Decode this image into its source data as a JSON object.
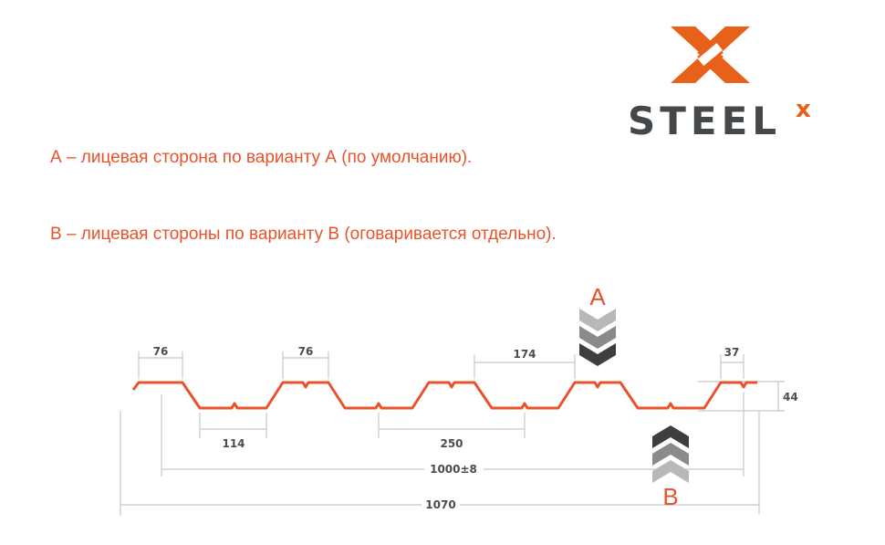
{
  "logo": {
    "text": "STEEL",
    "superscript": "x",
    "brand_color": "#e8611a",
    "text_color": "#45484b"
  },
  "legend": {
    "line_a": "А – лицевая сторона по варианту А (по умолчанию).",
    "line_b": "В – лицевая стороны по варианту В (оговаривается отдельно)."
  },
  "diagram": {
    "profile_color": "#e8532b",
    "side_a_label": "A",
    "side_b_label": "B",
    "dimensions": {
      "top_flange_left": "76",
      "top_flange_second": "76",
      "bottom_flange": "114",
      "pitch": "250",
      "gap": "174",
      "edge": "37",
      "height": "44",
      "useful_width": "1000±8",
      "total_width": "1070"
    }
  }
}
